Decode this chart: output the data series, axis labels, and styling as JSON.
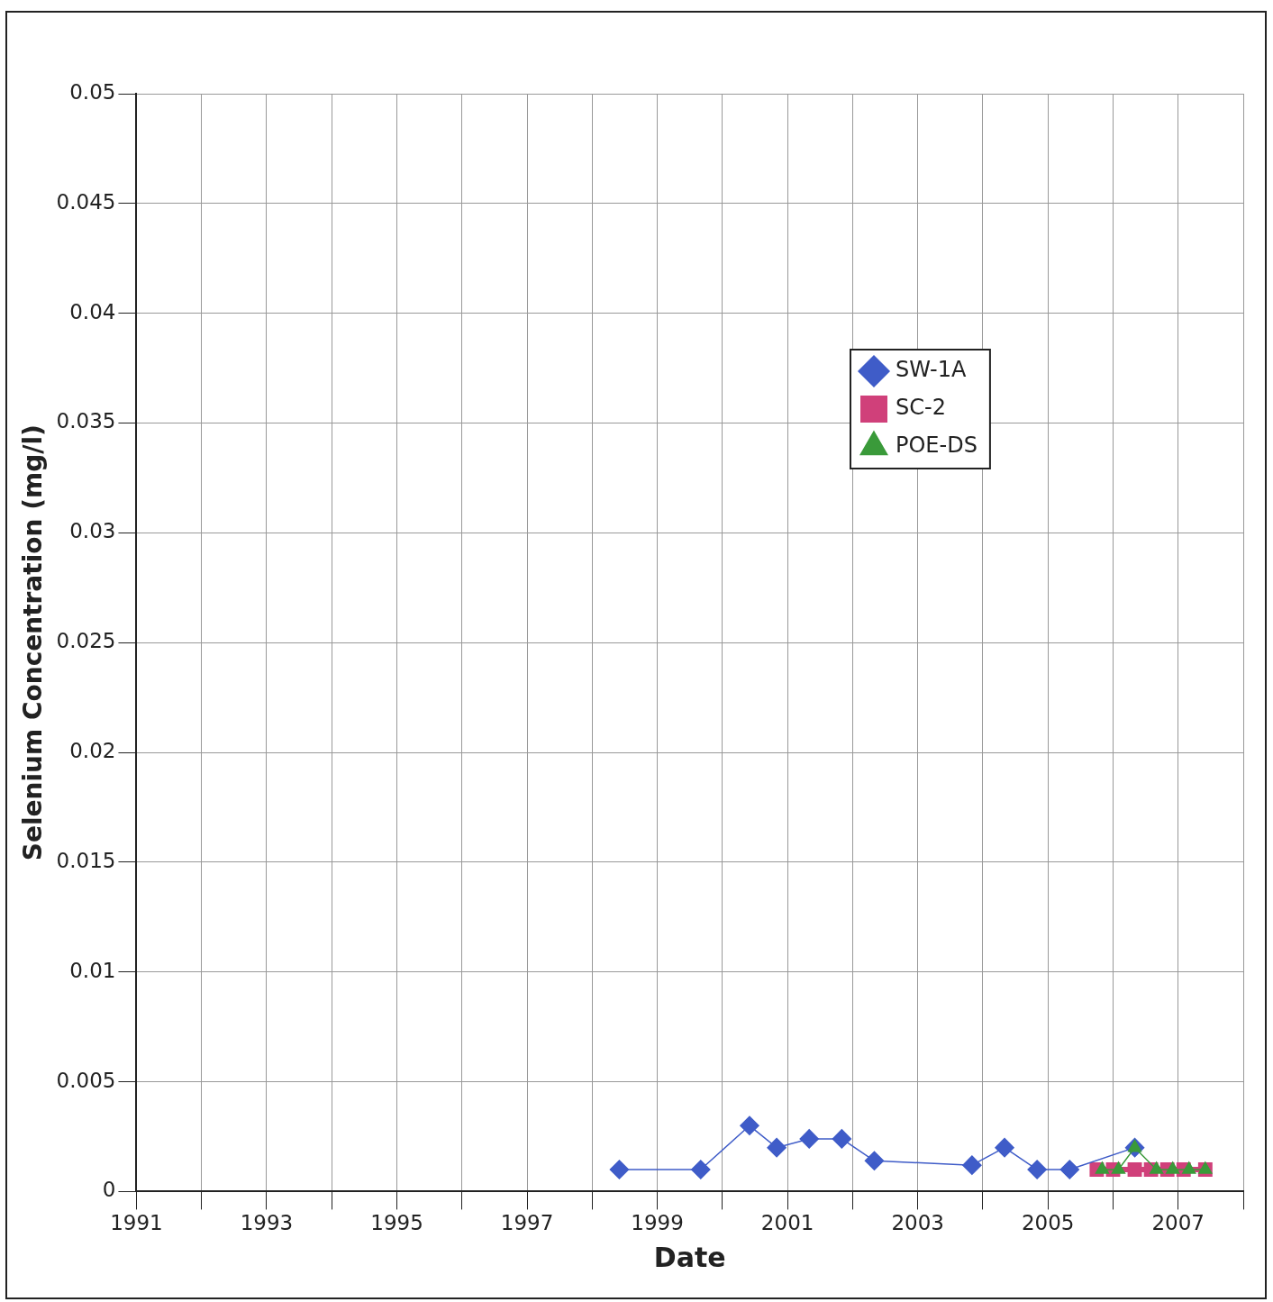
{
  "chart_data": {
    "type": "line",
    "xlabel": "Date",
    "ylabel": "Selenium Concentration (mg/l)",
    "xlim": [
      "1991-01",
      "2008-01"
    ],
    "xticks": [
      "1991",
      {
        "value": "1992",
        "label": null
      },
      "1993",
      {
        "value": "1994",
        "label": null
      },
      "1995",
      {
        "value": "1996",
        "label": null
      },
      "1997",
      {
        "value": "1998",
        "label": null
      },
      "1999",
      {
        "value": "2000",
        "label": null
      },
      "2001",
      {
        "value": "2002",
        "label": null
      },
      "2003",
      {
        "value": "2004",
        "label": null
      },
      "2005",
      {
        "value": "2006",
        "label": null
      },
      "2007",
      {
        "value": "2008",
        "label": null
      }
    ],
    "ylim": [
      0,
      0.05
    ],
    "yticks": [
      0,
      0.005,
      0.01,
      0.015,
      0.02,
      0.025,
      0.03,
      0.035,
      0.04,
      0.045,
      0.05
    ],
    "grid": true,
    "legend": "top right",
    "series": [
      {
        "name": "SW-1A",
        "color": "#3f5cc8",
        "marker": "diamond",
        "x": [
          "1998-06",
          "1999-09",
          "2000-06",
          "2000-11",
          "2001-05",
          "2001-11",
          "2002-05",
          "2003-11",
          "2004-05",
          "2004-11",
          "2005-05",
          "2006-05"
        ],
        "values": [
          0.001,
          0.001,
          0.003,
          0.002,
          0.0024,
          0.0024,
          0.0014,
          0.0012,
          0.002,
          0.001,
          0.001,
          0.002
        ]
      },
      {
        "name": "SC-2",
        "color": "#d0407a",
        "marker": "square",
        "x": [
          "2005-10",
          "2006-01",
          "2006-05",
          "2006-08",
          "2006-11",
          "2007-02",
          "2007-06"
        ],
        "values": [
          0.001,
          0.001,
          0.001,
          0.001,
          0.001,
          0.001,
          0.001
        ]
      },
      {
        "name": "POE-DS",
        "color": "#3a9a3a",
        "marker": "triangle",
        "x": [
          "2005-11",
          "2006-02",
          "2006-05",
          "2006-09",
          "2006-12",
          "2007-03",
          "2007-06"
        ],
        "values": [
          0.001,
          0.001,
          0.002,
          0.001,
          0.001,
          0.001,
          0.001
        ]
      }
    ]
  }
}
